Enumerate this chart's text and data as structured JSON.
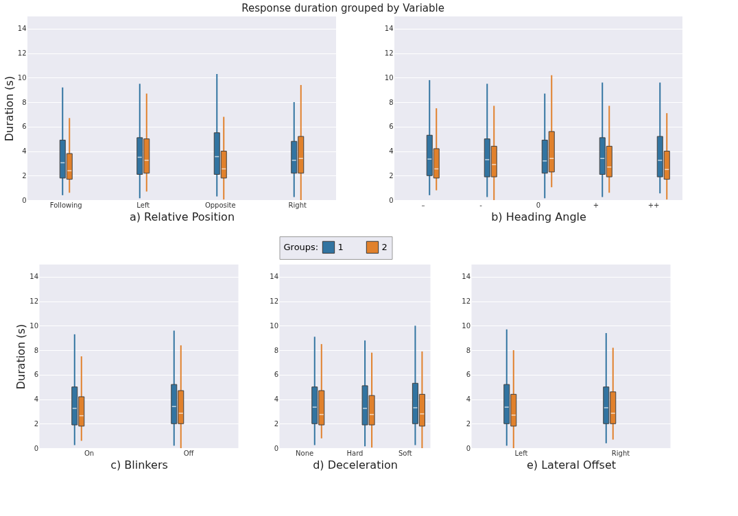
{
  "chart_data": [
    {
      "type": "box",
      "title": "Response duration grouped by Variable",
      "xlabel": "a) Relative Position",
      "ylabel": "Duration (s)",
      "categories": [
        "Following",
        "Left",
        "Opposite",
        "Right"
      ],
      "ylim": [
        0,
        15
      ],
      "yticks": [
        0,
        2,
        4,
        6,
        8,
        10,
        12,
        14
      ],
      "grid": "y",
      "legend": false,
      "series": [
        {
          "color": "#3274a1",
          "boxes": [
            {
              "low": 0.4,
              "q1": 1.8,
              "median": 3.05,
              "q3": 4.9,
              "high": 9.2
            },
            {
              "low": 0.15,
              "q1": 2.1,
              "median": 3.5,
              "q3": 5.1,
              "high": 9.5
            },
            {
              "low": 0.3,
              "q1": 2.1,
              "median": 3.55,
              "q3": 5.5,
              "high": 10.3
            },
            {
              "low": 0.25,
              "q1": 2.2,
              "median": 3.25,
              "q3": 4.8,
              "high": 8.0
            }
          ]
        },
        {
          "color": "#e1812c",
          "boxes": [
            {
              "low": 0.6,
              "q1": 1.7,
              "median": 2.4,
              "q3": 3.8,
              "high": 6.7
            },
            {
              "low": 0.7,
              "q1": 2.2,
              "median": 3.25,
              "q3": 5.0,
              "high": 8.7
            },
            {
              "low": 0.05,
              "q1": 1.8,
              "median": 2.55,
              "q3": 4.0,
              "high": 6.8
            },
            {
              "low": 0.0,
              "q1": 2.2,
              "median": 3.4,
              "q3": 5.2,
              "high": 9.4
            }
          ]
        }
      ]
    },
    {
      "type": "box",
      "xlabel": "b) Heading Angle",
      "categories": [
        "–",
        "-",
        "0",
        "+",
        "++"
      ],
      "ylim": [
        0,
        15
      ],
      "yticks": [
        0,
        2,
        4,
        6,
        8,
        10,
        12,
        14
      ],
      "grid": "y",
      "legend": false,
      "series": [
        {
          "color": "#3274a1",
          "boxes": [
            {
              "low": 0.4,
              "q1": 2.0,
              "median": 3.35,
              "q3": 5.3,
              "high": 9.8
            },
            {
              "low": 0.25,
              "q1": 1.9,
              "median": 3.3,
              "q3": 5.0,
              "high": 9.5
            },
            {
              "low": 0.15,
              "q1": 2.2,
              "median": 3.2,
              "q3": 4.9,
              "high": 8.7
            },
            {
              "low": 0.25,
              "q1": 2.1,
              "median": 3.4,
              "q3": 5.1,
              "high": 9.6
            },
            {
              "low": 0.55,
              "q1": 1.9,
              "median": 3.25,
              "q3": 5.2,
              "high": 9.6
            }
          ]
        },
        {
          "color": "#e1812c",
          "boxes": [
            {
              "low": 0.8,
              "q1": 1.8,
              "median": 2.55,
              "q3": 4.2,
              "high": 7.5
            },
            {
              "low": 0.0,
              "q1": 1.9,
              "median": 2.9,
              "q3": 4.4,
              "high": 7.7
            },
            {
              "low": 1.05,
              "q1": 2.3,
              "median": 3.4,
              "q3": 5.6,
              "high": 10.2
            },
            {
              "low": 0.6,
              "q1": 1.9,
              "median": 2.7,
              "q3": 4.4,
              "high": 7.7
            },
            {
              "low": 0.05,
              "q1": 1.7,
              "median": 2.5,
              "q3": 4.0,
              "high": 7.1
            }
          ]
        }
      ]
    },
    {
      "type": "box",
      "xlabel": "c) Blinkers",
      "ylabel": "Duration (s)",
      "categories": [
        "On",
        "Off"
      ],
      "ylim": [
        0,
        15
      ],
      "yticks": [
        0,
        2,
        4,
        6,
        8,
        10,
        12,
        14
      ],
      "grid": "y",
      "legend": false,
      "series": [
        {
          "color": "#3274a1",
          "boxes": [
            {
              "low": 0.25,
              "q1": 1.9,
              "median": 3.25,
              "q3": 5.0,
              "high": 9.3
            },
            {
              "low": 0.2,
              "q1": 2.0,
              "median": 3.4,
              "q3": 5.2,
              "high": 9.6
            }
          ]
        },
        {
          "color": "#e1812c",
          "boxes": [
            {
              "low": 0.6,
              "q1": 1.8,
              "median": 2.65,
              "q3": 4.2,
              "high": 7.5
            },
            {
              "low": 0.0,
              "q1": 2.0,
              "median": 2.85,
              "q3": 4.7,
              "high": 8.4
            }
          ]
        }
      ]
    },
    {
      "type": "box",
      "xlabel": "d) Deceleration",
      "categories": [
        "None",
        "Hard",
        "Soft"
      ],
      "ylim": [
        0,
        15
      ],
      "yticks": [
        0,
        2,
        4,
        6,
        8,
        10,
        12,
        14
      ],
      "grid": "y",
      "legend": "top",
      "legend_title": "Groups:",
      "series": [
        {
          "name": "1",
          "color": "#3274a1",
          "boxes": [
            {
              "low": 0.25,
              "q1": 2.0,
              "median": 3.35,
              "q3": 5.0,
              "high": 9.1
            },
            {
              "low": 0.15,
              "q1": 1.9,
              "median": 3.25,
              "q3": 5.1,
              "high": 8.8
            },
            {
              "low": 0.25,
              "q1": 2.0,
              "median": 3.3,
              "q3": 5.3,
              "high": 10.0
            }
          ]
        },
        {
          "name": "2",
          "color": "#e1812c",
          "boxes": [
            {
              "low": 0.8,
              "q1": 1.9,
              "median": 2.75,
              "q3": 4.7,
              "high": 8.5
            },
            {
              "low": 0.05,
              "q1": 1.9,
              "median": 2.75,
              "q3": 4.3,
              "high": 7.8
            },
            {
              "low": 0.0,
              "q1": 1.8,
              "median": 2.8,
              "q3": 4.4,
              "high": 7.9
            }
          ]
        }
      ]
    },
    {
      "type": "box",
      "xlabel": "e) Lateral Offset",
      "categories": [
        "Left",
        "Right"
      ],
      "ylim": [
        0,
        15
      ],
      "yticks": [
        0,
        2,
        4,
        6,
        8,
        10,
        12,
        14
      ],
      "grid": "y",
      "legend": false,
      "series": [
        {
          "color": "#3274a1",
          "boxes": [
            {
              "low": 0.2,
              "q1": 2.0,
              "median": 3.35,
              "q3": 5.2,
              "high": 9.7
            },
            {
              "low": 0.4,
              "q1": 2.0,
              "median": 3.3,
              "q3": 5.0,
              "high": 9.4
            }
          ]
        },
        {
          "color": "#e1812c",
          "boxes": [
            {
              "low": 0.0,
              "q1": 1.8,
              "median": 2.7,
              "q3": 4.4,
              "high": 8.0
            },
            {
              "low": 0.7,
              "q1": 2.0,
              "median": 2.85,
              "q3": 4.6,
              "high": 8.2
            }
          ]
        }
      ]
    }
  ]
}
